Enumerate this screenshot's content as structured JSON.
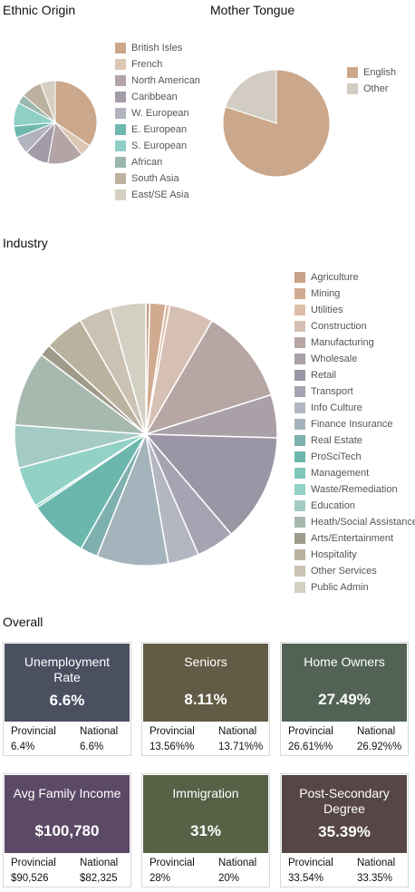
{
  "sections": {
    "ethnic_title": "Ethnic Origin",
    "tongue_title": "Mother Tongue",
    "industry_title": "Industry",
    "overall_title": "Overall"
  },
  "chart_data": [
    {
      "type": "pie",
      "title": "Ethnic Origin",
      "categories": [
        "British Isles",
        "French",
        "North American",
        "Caribbean",
        "W. European",
        "E. European",
        "S. European",
        "African",
        "South Asia",
        "East/SE Asia"
      ],
      "values": [
        30,
        4,
        12,
        8,
        6,
        4,
        8,
        3,
        7,
        5
      ],
      "colors": [
        "#cba78b",
        "#dcc7b3",
        "#b3a4a5",
        "#a39ba8",
        "#b1b4be",
        "#6fb8b0",
        "#8fcfc6",
        "#9cb7ad",
        "#bdb1a0",
        "#d6d0c2"
      ],
      "legend_position": "right"
    },
    {
      "type": "pie",
      "title": "Mother Tongue",
      "categories": [
        "English",
        "Other"
      ],
      "values": [
        80,
        20
      ],
      "colors": [
        "#cba78b",
        "#d2ccc2"
      ],
      "legend_position": "right"
    },
    {
      "type": "pie",
      "title": "Industry",
      "categories": [
        "Agriculture",
        "Mining",
        "Utilities",
        "Construction",
        "Manufacturing",
        "Wholesale",
        "Retail",
        "Transport",
        "Info Culture",
        "Finance Insurance",
        "Real Estate",
        "ProSciTech",
        "Management",
        "Waste/Remediation",
        "Education",
        "Heath/Social Assistance",
        "Arts/Entertainment",
        "Hospitality",
        "Other Services",
        "Public Admin"
      ],
      "values": [
        0.5,
        2.0,
        0.5,
        5.6,
        12.0,
        5.4,
        13.6,
        4.8,
        3.9,
        9.0,
        2.2,
        7.5,
        0.3,
        5.1,
        5.4,
        9.4,
        1.5,
        5.0,
        4.0,
        4.5
      ],
      "colors": [
        "#c8a28a",
        "#d1ab90",
        "#dcbda8",
        "#d6c0b3",
        "#b6a6a4",
        "#aaa0a8",
        "#9b96a5",
        "#a8a3b3",
        "#b4b6c2",
        "#a4b4bc",
        "#7fb0b0",
        "#6bb7ad",
        "#7fc7bd",
        "#92d1c6",
        "#a3cbc3",
        "#a6b9ae",
        "#9e9b8a",
        "#bbb19f",
        "#cbc2b3",
        "#d3cfc3"
      ],
      "legend_position": "right"
    }
  ],
  "cards": [
    {
      "name": "Unemployment Rate",
      "value": "6.6%",
      "prov_label": "Provincial",
      "nat_label": "National",
      "prov": "6.4%",
      "nat": "6.6%",
      "color": "#4b5061"
    },
    {
      "name": "Seniors",
      "value": "8.11%",
      "prov_label": "Provincial",
      "nat_label": "National",
      "prov": "13.56%%",
      "nat": "13.71%%",
      "color": "#635b45"
    },
    {
      "name": "Home Owners",
      "value": "27.49%",
      "prov_label": "Provincial",
      "nat_label": "National",
      "prov": "26.61%%",
      "nat": "26.92%%",
      "color": "#526355"
    },
    {
      "name": "Avg Family Income",
      "value": "$100,780",
      "prov_label": "Provincial",
      "nat_label": "National",
      "prov": "$90,526",
      "nat": "$82,325",
      "color": "#5c4966"
    },
    {
      "name": "Immigration",
      "value": "31%",
      "prov_label": "Provincial",
      "nat_label": "National",
      "prov": "28%",
      "nat": "20%",
      "color": "#566146"
    },
    {
      "name": "Post-Secondary Degree",
      "value": "35.39%",
      "prov_label": "Provincial",
      "nat_label": "National",
      "prov": "33.54%",
      "nat": "33.35%",
      "color": "#564646"
    }
  ]
}
